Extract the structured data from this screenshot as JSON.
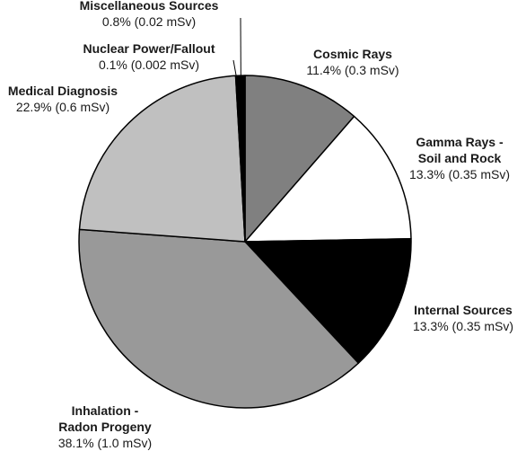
{
  "chart_data": {
    "type": "pie",
    "title": "",
    "unit": "mSv",
    "slices": [
      {
        "name": [
          "Cosmic Rays"
        ],
        "percent": 11.4,
        "percent_label": "11.4%",
        "dose": 0.3,
        "dose_label": "(0.3 mSv)",
        "color": "#808080"
      },
      {
        "name": [
          "Gamma Rays -",
          "Soil and Rock"
        ],
        "percent": 13.3,
        "percent_label": "13.3%",
        "dose": 0.35,
        "dose_label": "(0.35 mSv)",
        "color": "#ffffff"
      },
      {
        "name": [
          "Internal Sources"
        ],
        "percent": 13.3,
        "percent_label": "13.3%",
        "dose": 0.35,
        "dose_label": "(0.35 mSv)",
        "color": "#000000"
      },
      {
        "name": [
          "Inhalation -",
          "Radon Progeny"
        ],
        "percent": 38.1,
        "percent_label": "38.1%",
        "dose": 1.0,
        "dose_label": "(1.0 mSv)",
        "color": "#999999"
      },
      {
        "name": [
          "Medical Diagnosis"
        ],
        "percent": 22.9,
        "percent_label": "22.9%",
        "dose": 0.6,
        "dose_label": "(0.6 mSv)",
        "color": "#c0c0c0"
      },
      {
        "name": [
          "Nuclear Power/Fallout"
        ],
        "percent": 0.1,
        "percent_label": "0.1%",
        "dose": 0.002,
        "dose_label": "(0.002 mSv)",
        "color": "#ffffff"
      },
      {
        "name": [
          "Miscellaneous Sources"
        ],
        "percent": 0.8,
        "percent_label": "0.8%",
        "dose": 0.02,
        "dose_label": "(0.02 mSv)",
        "color": "#000000"
      }
    ],
    "legend": "none"
  }
}
